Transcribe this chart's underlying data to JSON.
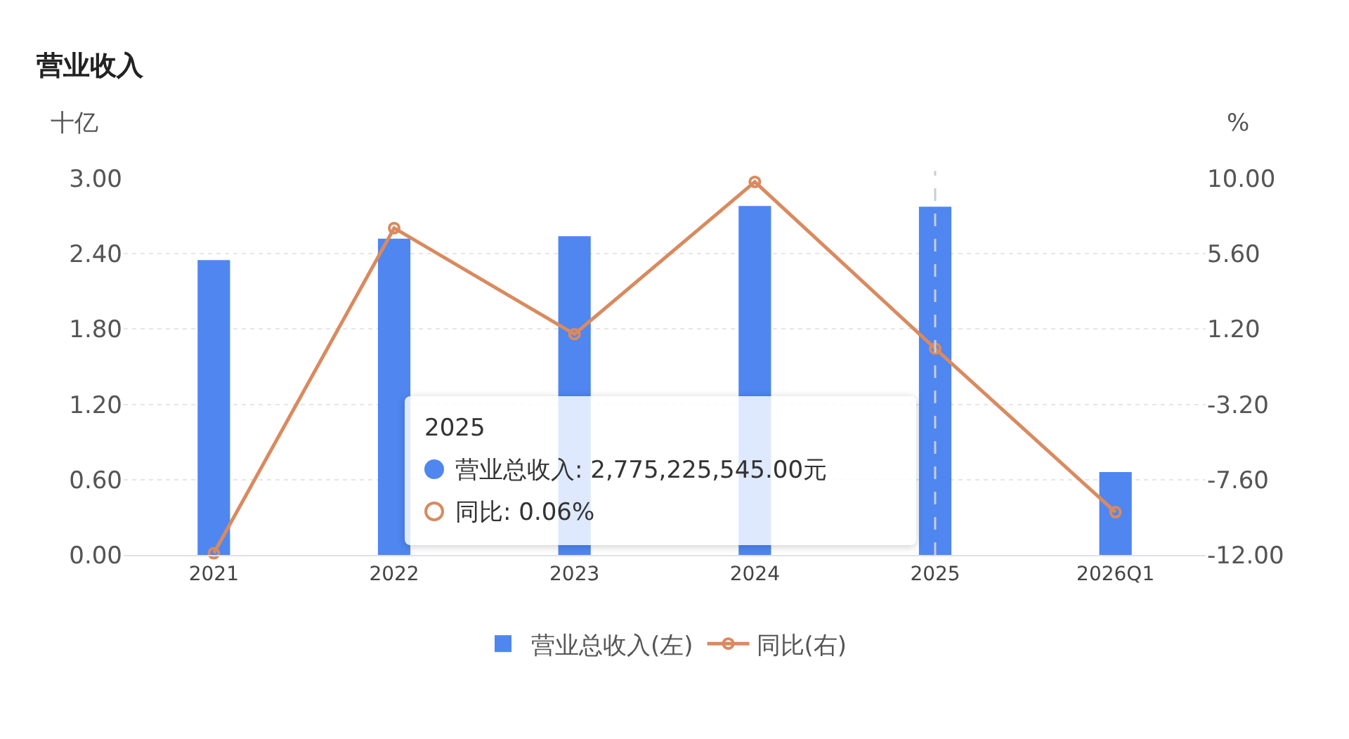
{
  "chart_data": {
    "type": "bar",
    "title": "营业收入",
    "ylabel": "十亿",
    "y2label": "%",
    "categories": [
      "2021",
      "2022",
      "2023",
      "2024",
      "2025",
      "2026Q1"
    ],
    "series": [
      {
        "name": "营业总收入(左)",
        "color": "#4f86f0",
        "values": [
          2.35,
          2.52,
          2.54,
          2.78,
          2.775,
          0.66
        ]
      },
      {
        "name": "同比(右)",
        "type": "line",
        "axis": "y2",
        "color": "#d98a5f",
        "marker": "circle",
        "values": [
          -11.9,
          7.1,
          0.9,
          9.8,
          0.06,
          -9.5
        ]
      }
    ],
    "ylim": [
      0,
      3
    ],
    "yticks": [
      {
        "value": 0,
        "label": "0.00"
      },
      {
        "value": 0.6,
        "label": "0.60"
      },
      {
        "value": 1.2,
        "label": "1.20"
      },
      {
        "value": 1.8,
        "label": "1.80"
      },
      {
        "value": 2.4,
        "label": "2.40"
      },
      {
        "value": 3,
        "label": "3.00"
      }
    ],
    "y2lim": [
      -12,
      10
    ],
    "y2ticks": [
      {
        "value": -12,
        "label": "-12.00"
      },
      {
        "value": -7.6,
        "label": "-7.60"
      },
      {
        "value": -3.2,
        "label": "-3.20"
      },
      {
        "value": 1.2,
        "label": "1.20"
      },
      {
        "value": 5.6,
        "label": "5.60"
      },
      {
        "value": 10,
        "label": "10.00"
      }
    ],
    "ref_lines": [
      {
        "axis": "x",
        "value": "2025",
        "color": "#c8cdd6",
        "line_style": "dashed"
      }
    ],
    "annotations": [
      "2025",
      "营业总收入: 2,775,225,545.00元",
      "同比: 0.06%"
    ],
    "grid": "y",
    "legend": "bottom"
  }
}
